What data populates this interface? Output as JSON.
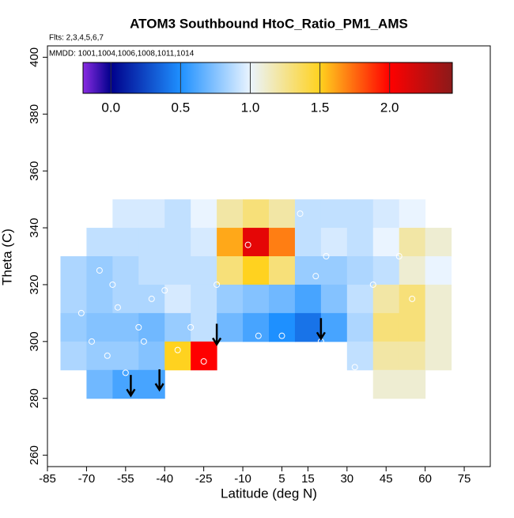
{
  "chart_data": {
    "type": "heatmap",
    "title": "ATOM3 Southbound HtoC_Ratio_PM1_AMS",
    "subtitle": "Flts: 2,3,4,5,6,7",
    "annotation": "MMDD: 1001,1004,1006,1008,1011,1014",
    "xlabel": "Latitude (deg N)",
    "ylabel": "Theta (C)",
    "xlim": [
      -85,
      85
    ],
    "ylim": [
      256,
      404
    ],
    "xticks": [
      -85,
      -70,
      -55,
      -40,
      -25,
      -10,
      5,
      15,
      30,
      45,
      60,
      75
    ],
    "yticks": [
      260,
      280,
      300,
      320,
      340,
      360,
      380,
      400
    ],
    "x": [
      -75,
      -65,
      -55,
      -45,
      -35,
      -25,
      -15,
      -5,
      5,
      15,
      25,
      35,
      45,
      55,
      65
    ],
    "y": [
      345,
      335,
      325,
      315,
      305,
      295,
      285
    ],
    "z": [
      [
        null,
        null,
        0.95,
        0.95,
        0.9,
        1.0,
        1.2,
        1.3,
        1.2,
        0.9,
        0.9,
        0.9,
        0.95,
        1.0,
        null
      ],
      [
        null,
        0.9,
        0.9,
        0.9,
        0.9,
        0.95,
        1.6,
        2.1,
        1.7,
        0.9,
        0.95,
        0.9,
        1.0,
        1.2,
        1.1
      ],
      [
        0.85,
        0.8,
        0.85,
        0.9,
        0.9,
        0.9,
        1.3,
        1.5,
        1.3,
        0.8,
        0.8,
        0.85,
        0.9,
        1.1,
        1.0
      ],
      [
        0.85,
        0.8,
        0.85,
        0.85,
        0.95,
        0.9,
        0.8,
        0.75,
        0.7,
        0.6,
        0.75,
        0.9,
        1.2,
        1.3,
        1.1
      ],
      [
        0.8,
        0.75,
        0.75,
        0.7,
        0.8,
        0.9,
        0.7,
        0.6,
        0.5,
        0.4,
        0.6,
        0.85,
        1.3,
        1.3,
        1.1
      ],
      [
        0.85,
        0.8,
        0.8,
        0.75,
        1.5,
        2.0,
        null,
        null,
        null,
        null,
        null,
        0.9,
        1.2,
        1.2,
        1.1
      ],
      [
        null,
        0.7,
        0.6,
        0.6,
        null,
        null,
        null,
        null,
        null,
        null,
        null,
        null,
        1.1,
        1.1,
        null
      ]
    ],
    "clim": [
      -0.2,
      2.45
    ],
    "colorscale": [
      {
        "value": -0.2,
        "color": "#8a2be2"
      },
      {
        "value": 0,
        "color": "#00008b"
      },
      {
        "value": 0.5,
        "color": "#1e90ff"
      },
      {
        "value": 1.0,
        "color": "#eaf4ff"
      },
      {
        "value": 1.5,
        "color": "#ffd21f"
      },
      {
        "value": 2.0,
        "color": "#ff0000"
      },
      {
        "value": 2.45,
        "color": "#8b1a1a"
      }
    ],
    "cbar_ticks": [
      {
        "value": 0,
        "label": "0.0"
      },
      0.5,
      {
        "value": 1.0,
        "label": "1.0"
      },
      1.5,
      {
        "value": 2.0,
        "label": "2.0"
      }
    ],
    "points": {
      "x": [
        -72,
        -68,
        -62,
        -60,
        -55,
        -50,
        -45,
        -40,
        -37,
        -30,
        -25,
        -20,
        -8,
        -4,
        5,
        12,
        18,
        20,
        22,
        33,
        40,
        50,
        55,
        -65,
        -58,
        -48,
        -35
      ],
      "y": [
        310,
        300,
        295,
        320,
        289,
        305,
        315,
        318,
        287,
        305,
        293,
        320,
        334,
        302,
        302,
        345,
        323,
        300,
        330,
        291,
        320,
        330,
        315,
        325,
        312,
        300,
        297
      ]
    },
    "arrows": {
      "x": [
        -53,
        -42,
        -20,
        20
      ],
      "y": [
        281,
        283,
        299,
        301
      ]
    }
  }
}
